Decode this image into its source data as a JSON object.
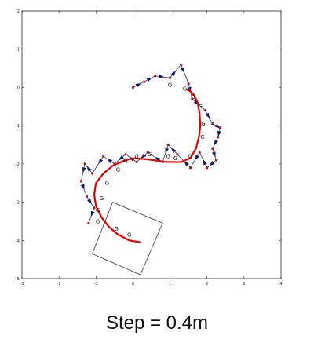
{
  "caption": "Step = 0.4m",
  "chart_data": {
    "type": "line",
    "xlim": [
      -3,
      4
    ],
    "ylim": [
      -5,
      2
    ],
    "x_ticks": [
      "-3",
      "-2",
      "-1",
      "0",
      "1",
      "2",
      "3",
      "4"
    ],
    "y_ticks": [
      "2",
      "1",
      "0",
      "-1",
      "-2",
      "-3",
      "-4",
      "-5"
    ],
    "grid": false,
    "series": [
      {
        "type": "path",
        "color": "#e00000",
        "x": [
          0.2,
          -0.1,
          -0.4,
          -0.65,
          -0.85,
          -1.0,
          -1.05,
          -1.0,
          -0.8,
          -0.55,
          -0.25,
          0.0,
          0.4,
          0.9,
          1.3,
          1.55,
          1.7,
          1.78,
          1.82,
          1.8,
          1.75,
          1.65,
          1.55,
          1.45
        ],
        "y": [
          -4.05,
          -4.0,
          -3.85,
          -3.65,
          -3.4,
          -3.1,
          -2.8,
          -2.5,
          -2.25,
          -2.05,
          -1.92,
          -1.85,
          -1.88,
          -1.95,
          -1.95,
          -1.85,
          -1.6,
          -1.3,
          -1.0,
          -0.7,
          -0.4,
          -0.2,
          -0.1,
          -0.05
        ]
      },
      {
        "type": "points",
        "color": "#9a1e2e",
        "x": [
          0.0,
          0.3,
          0.6,
          1.0,
          1.3,
          1.5,
          1.6,
          1.95,
          2.15,
          2.35,
          2.3,
          2.15,
          2.25,
          2.0,
          1.8,
          1.55,
          1.2,
          0.95,
          0.8,
          0.4,
          0.1,
          -0.2,
          -0.5,
          -0.8,
          -1.1,
          -1.3,
          -1.4,
          -1.25,
          -1.05,
          -1.2
        ],
        "y": [
          0.0,
          0.15,
          0.3,
          0.25,
          0.6,
          0.1,
          -0.3,
          -0.6,
          -0.95,
          -1.05,
          -1.3,
          -1.6,
          -1.9,
          -2.1,
          -1.7,
          -2.1,
          -1.75,
          -1.5,
          -1.95,
          -1.7,
          -1.95,
          -1.75,
          -2.0,
          -1.8,
          -2.25,
          -2.0,
          -2.45,
          -2.85,
          -3.15,
          -3.55
        ]
      }
    ],
    "g_labels": [
      {
        "x": 1.0,
        "y": 0.02,
        "text": "G"
      },
      {
        "x": 1.4,
        "y": -0.08,
        "text": "G"
      },
      {
        "x": 1.62,
        "y": -0.3,
        "text": "G"
      },
      {
        "x": 1.82,
        "y": -0.55,
        "text": "G"
      },
      {
        "x": 1.9,
        "y": -1.0,
        "text": "G"
      },
      {
        "x": 1.88,
        "y": -1.35,
        "text": "G"
      },
      {
        "x": 1.55,
        "y": -1.85,
        "text": "G"
      },
      {
        "x": 1.15,
        "y": -1.9,
        "text": "G"
      },
      {
        "x": 0.95,
        "y": -1.85,
        "text": "G"
      },
      {
        "x": 0.45,
        "y": -1.8,
        "text": "G"
      },
      {
        "x": 0.1,
        "y": -1.85,
        "text": "G"
      },
      {
        "x": -0.2,
        "y": -1.95,
        "text": "G"
      },
      {
        "x": -0.4,
        "y": -2.2,
        "text": "G"
      },
      {
        "x": -0.7,
        "y": -2.55,
        "text": "G"
      },
      {
        "x": -0.85,
        "y": -2.95,
        "text": "G"
      },
      {
        "x": -0.95,
        "y": -3.25,
        "text": "G"
      },
      {
        "x": -0.95,
        "y": -3.55,
        "text": "G"
      },
      {
        "x": -0.45,
        "y": -3.75,
        "text": "G"
      },
      {
        "x": -0.1,
        "y": -3.9,
        "text": "G"
      }
    ]
  }
}
